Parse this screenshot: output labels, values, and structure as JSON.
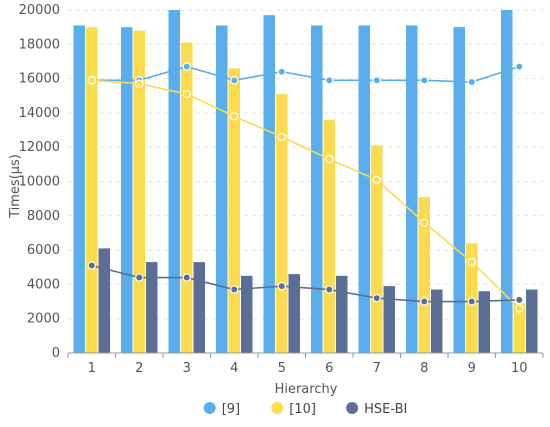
{
  "chart_data": {
    "type": "bar",
    "xlabel": "Hierarchy",
    "ylabel": "Times(μs)",
    "categories": [
      "1",
      "2",
      "3",
      "4",
      "5",
      "6",
      "7",
      "8",
      "9",
      "10"
    ],
    "ylim": [
      0,
      20000
    ],
    "yticks": [
      0,
      2000,
      4000,
      6000,
      8000,
      10000,
      12000,
      14000,
      16000,
      18000,
      20000
    ],
    "grid": true,
    "legend_position": "bottom",
    "series": [
      {
        "name": "[9]",
        "color": "#5AAEEB",
        "bar_values": [
          19100,
          19000,
          20000,
          19100,
          19700,
          19100,
          19100,
          19100,
          19000,
          20000
        ],
        "line_values": [
          15900,
          15900,
          16700,
          15900,
          16400,
          15900,
          15900,
          15900,
          15800,
          16700
        ]
      },
      {
        "name": "[10]",
        "color": "#FCDB4E",
        "bar_values": [
          19000,
          18800,
          18100,
          16600,
          15100,
          13600,
          12100,
          9100,
          6400,
          2900
        ],
        "line_values": [
          15900,
          15700,
          15100,
          13800,
          12600,
          11300,
          10100,
          7600,
          5300,
          2600
        ]
      },
      {
        "name": "HSE-BI",
        "color": "#5B6F96",
        "bar_values": [
          6100,
          5300,
          5300,
          4500,
          4600,
          4500,
          3900,
          3700,
          3600,
          3700
        ],
        "line_values": [
          5100,
          4400,
          4400,
          3700,
          3900,
          3700,
          3200,
          3000,
          3000,
          3100
        ]
      }
    ]
  }
}
